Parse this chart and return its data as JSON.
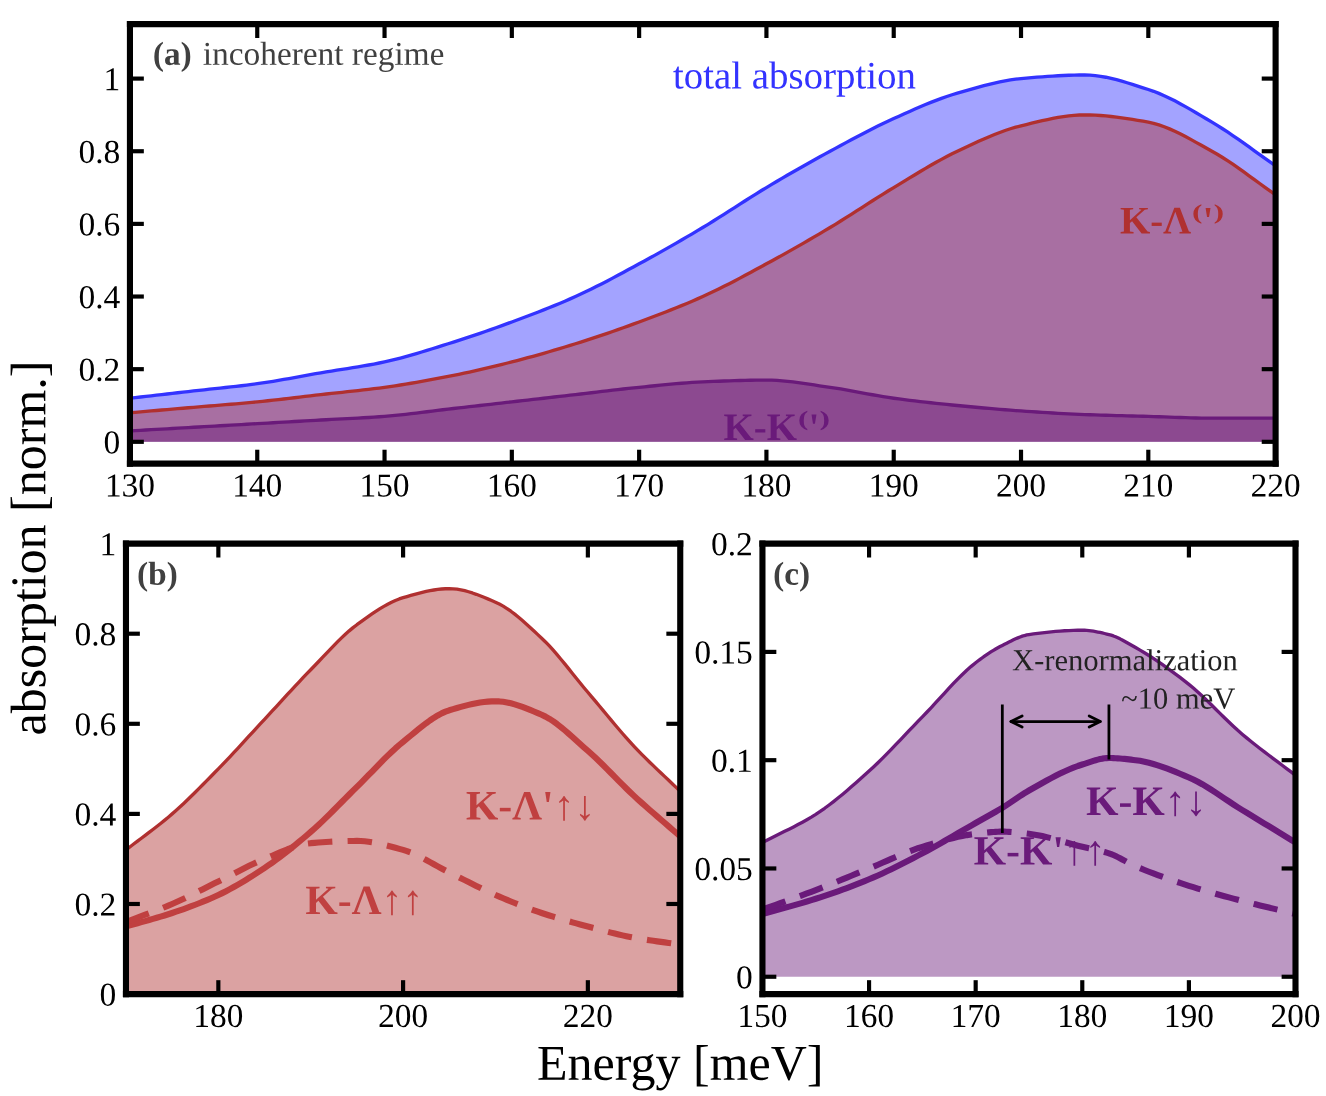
{
  "chart_data": [
    {
      "type": "area",
      "title": "(a)",
      "subtitle": "incoherent regime",
      "x": [
        130,
        135,
        140,
        145,
        150,
        155,
        160,
        165,
        170,
        175,
        180,
        185,
        190,
        195,
        200,
        205,
        210,
        215,
        220
      ],
      "series": [
        {
          "name": "total absorption",
          "color": "#3333ff",
          "values": [
            0.12,
            0.14,
            0.16,
            0.19,
            0.22,
            0.27,
            0.33,
            0.4,
            0.49,
            0.59,
            0.7,
            0.8,
            0.89,
            0.96,
            1.0,
            1.01,
            0.97,
            0.88,
            0.76
          ]
        },
        {
          "name": "K-Λ⁽'⁾",
          "color": "#b03030",
          "values": [
            0.08,
            0.095,
            0.11,
            0.13,
            0.15,
            0.18,
            0.22,
            0.27,
            0.33,
            0.4,
            0.49,
            0.59,
            0.7,
            0.8,
            0.87,
            0.9,
            0.88,
            0.8,
            0.68
          ]
        },
        {
          "name": "K-K⁽'⁾",
          "color": "#6a1a7a",
          "values": [
            0.03,
            0.04,
            0.05,
            0.06,
            0.07,
            0.09,
            0.11,
            0.13,
            0.15,
            0.165,
            0.17,
            0.15,
            0.12,
            0.1,
            0.085,
            0.075,
            0.07,
            0.065,
            0.065
          ]
        }
      ],
      "xlim": [
        130,
        220
      ],
      "ylim": [
        -0.06,
        1.15
      ],
      "xticks": [
        130,
        140,
        150,
        160,
        170,
        180,
        190,
        200,
        210,
        220
      ],
      "yticks": [
        0,
        0.2,
        0.4,
        0.6,
        0.8,
        1
      ],
      "legend": false,
      "grid": false
    },
    {
      "type": "area",
      "title": "(b)",
      "xlabel": "Energy [meV]",
      "ylabel": "absorption [norm.]",
      "x": [
        170,
        175,
        180,
        185,
        190,
        195,
        200,
        205,
        210,
        215,
        220,
        225,
        230
      ],
      "series": [
        {
          "color": "#b03030",
          "values": [
            0.32,
            0.4,
            0.5,
            0.61,
            0.72,
            0.82,
            0.88,
            0.9,
            0.87,
            0.79,
            0.67,
            0.55,
            0.45
          ]
        },
        {
          "type": "line",
          "name": "K-Λ'↑↓",
          "color": "#c04040",
          "line_style": "solid",
          "values": [
            0.15,
            0.18,
            0.22,
            0.28,
            0.36,
            0.46,
            0.56,
            0.63,
            0.65,
            0.62,
            0.54,
            0.44,
            0.35
          ]
        },
        {
          "type": "line",
          "name": "K-Λ↑↑",
          "color": "#c04040",
          "line_style": "dashed",
          "values": [
            0.16,
            0.2,
            0.25,
            0.3,
            0.335,
            0.34,
            0.32,
            0.27,
            0.22,
            0.18,
            0.15,
            0.125,
            0.11
          ]
        }
      ],
      "xlim": [
        170,
        230
      ],
      "ylim": [
        0,
        1
      ],
      "xticks": [
        180,
        200,
        220
      ],
      "yticks": [
        0,
        0.2,
        0.4,
        0.6,
        0.8,
        1
      ],
      "legend": false,
      "grid": false
    },
    {
      "type": "area",
      "title": "(c)",
      "x": [
        150,
        155,
        160,
        165,
        170,
        172.5,
        175,
        180,
        182.5,
        185,
        190,
        195,
        200
      ],
      "series": [
        {
          "color": "#6a1a7a",
          "values": [
            0.062,
            0.075,
            0.095,
            0.12,
            0.145,
            0.153,
            0.158,
            0.16,
            0.158,
            0.152,
            0.135,
            0.112,
            0.093
          ]
        },
        {
          "type": "line",
          "name": "K-K↑↓",
          "color": "#6a1a7a",
          "line_style": "solid",
          "values": [
            0.029,
            0.036,
            0.045,
            0.057,
            0.071,
            0.078,
            0.086,
            0.098,
            0.101,
            0.1,
            0.092,
            0.077,
            0.062
          ]
        },
        {
          "type": "line",
          "name": "K-K'↑↑",
          "color": "#6a1a7a",
          "line_style": "dashed",
          "values": [
            0.031,
            0.04,
            0.05,
            0.06,
            0.066,
            0.067,
            0.066,
            0.06,
            0.057,
            0.051,
            0.042,
            0.035,
            0.029
          ]
        }
      ],
      "annotations": [
        {
          "text": "X-renormalization",
          "x": 172.5,
          "y": 0.067
        },
        {
          "text": "~10 meV",
          "x": 182.5,
          "y": 0.101
        }
      ],
      "xlim": [
        150,
        200
      ],
      "ylim": [
        -0.008,
        0.2
      ],
      "xticks": [
        150,
        160,
        170,
        180,
        190,
        200
      ],
      "yticks": [
        0,
        0.05,
        0.1,
        0.15,
        0.2
      ],
      "legend": false,
      "grid": false
    }
  ]
}
